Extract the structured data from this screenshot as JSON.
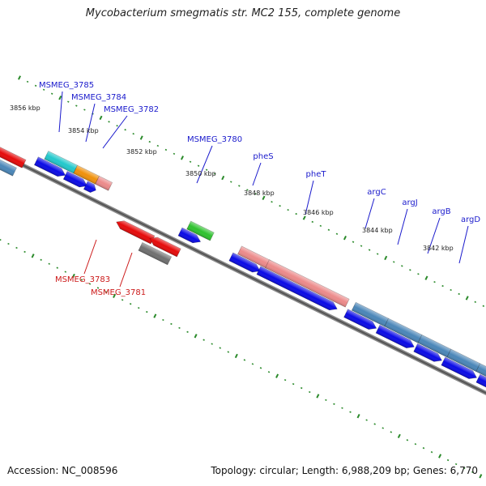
{
  "title": "Mycobacterium smegmatis str. MC2 155, complete genome",
  "footer": {
    "accession": "Accession: NC_008596",
    "summary": "Topology: circular; Length: 6,988,209 bp; Genes: 6,770"
  },
  "colors": {
    "backbone": "#7a7a7a",
    "tick": "#2a8a2a",
    "label_forward": "#1a1acc",
    "label_reverse": "#cc1a1a",
    "gene_blue": "#0a0ae6",
    "gene_red": "#e60a0a",
    "gene_cyan": "#22c8cc",
    "gene_orange": "#f0900a",
    "gene_pink": "#ec8a8a",
    "gene_green": "#2ec22e",
    "gene_gray": "#707070",
    "gene_steel": "#4a86b8"
  },
  "kbp_labels": [
    "3856 kbp",
    "3854 kbp",
    "3852 kbp",
    "3850 kbp",
    "3848 kbp",
    "3846 kbp",
    "3844 kbp",
    "3842 kbp"
  ],
  "gene_labels_forward": [
    "MSMEG_3785",
    "MSMEG_3784",
    "MSMEG_3782",
    "MSMEG_3780",
    "pheS",
    "pheT",
    "argC",
    "argJ",
    "argB",
    "argD"
  ],
  "gene_labels_reverse": [
    "MSMEG_3783",
    "MSMEG_3781"
  ]
}
